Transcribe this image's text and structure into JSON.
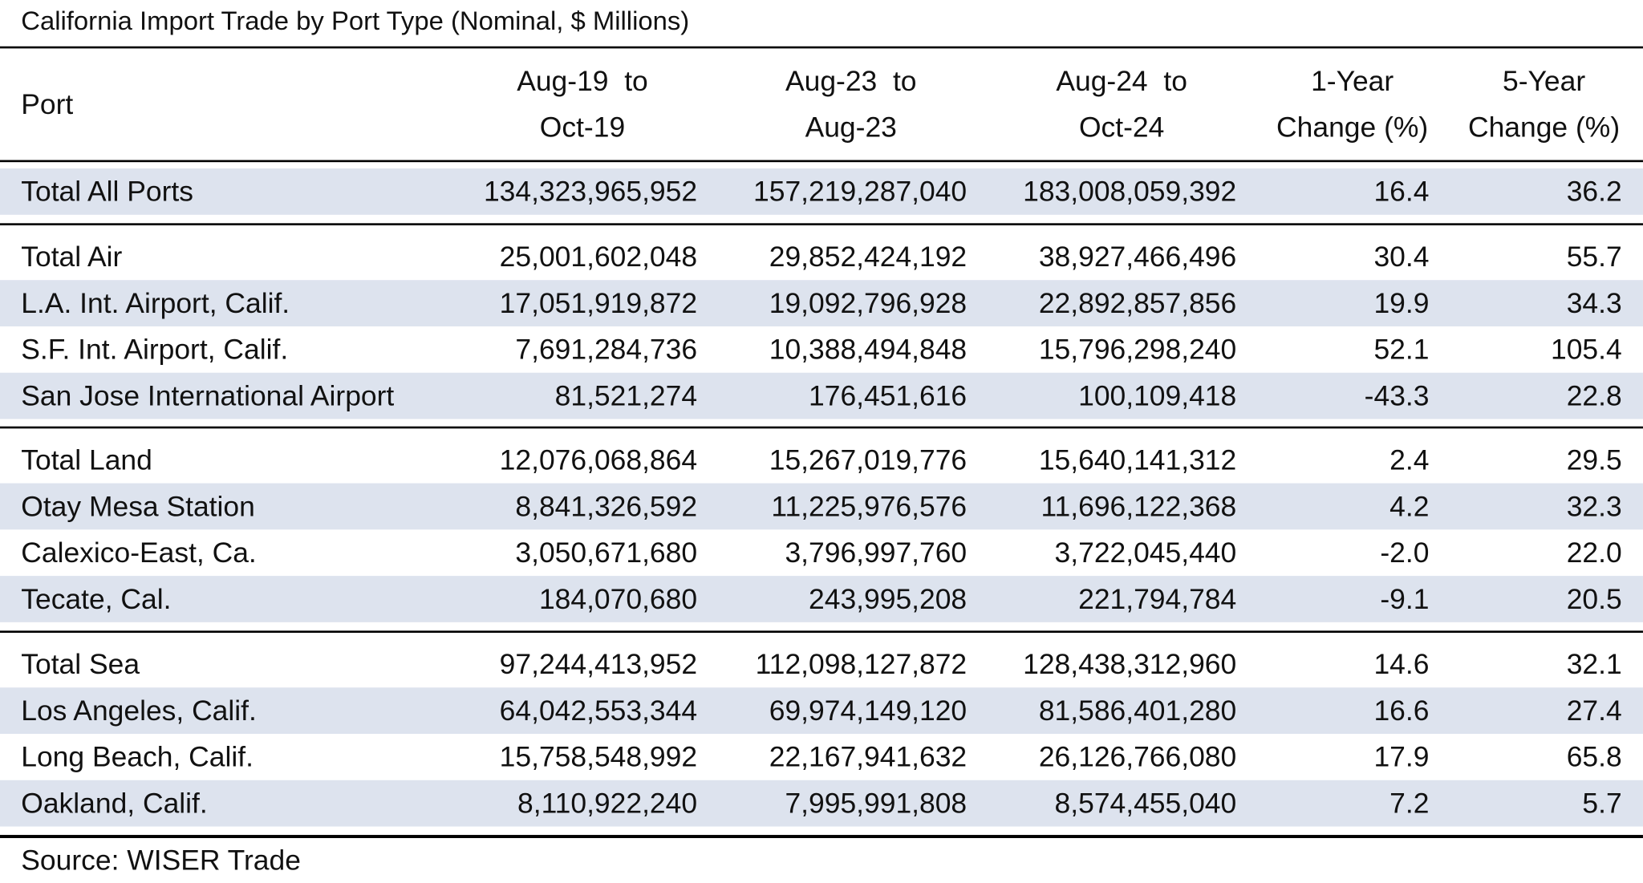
{
  "title": "California Import Trade by Port Type (Nominal, $ Millions)",
  "header": [
    "Port",
    [
      "Aug-19  to",
      "Oct-19"
    ],
    [
      "Aug-23  to",
      "Aug-23"
    ],
    [
      "Aug-24  to",
      "Oct-24"
    ],
    [
      "1-Year",
      "Change (%)"
    ],
    [
      "5-Year",
      "Change (%)"
    ]
  ],
  "rows": [
    [
      "Total All Ports",
      "134,323,965,952",
      "157,219,287,040",
      "183,008,059,392",
      "16.4",
      "36.2"
    ],
    [
      "Total Air",
      "25,001,602,048",
      "29,852,424,192",
      "38,927,466,496",
      "30.4",
      "55.7"
    ],
    [
      "L.A. Int. Airport, Calif.",
      "17,051,919,872",
      "19,092,796,928",
      "22,892,857,856",
      "19.9",
      "34.3"
    ],
    [
      "S.F. Int. Airport, Calif.",
      "7,691,284,736",
      "10,388,494,848",
      "15,796,298,240",
      "52.1",
      "105.4"
    ],
    [
      "San Jose International Airport",
      "81,521,274",
      "176,451,616",
      "100,109,418",
      "-43.3",
      "22.8"
    ],
    [
      "Total Land",
      "12,076,068,864",
      "15,267,019,776",
      "15,640,141,312",
      "2.4",
      "29.5"
    ],
    [
      "Otay Mesa Station",
      "8,841,326,592",
      "11,225,976,576",
      "11,696,122,368",
      "4.2",
      "32.3"
    ],
    [
      "Calexico-East, Ca.",
      "3,050,671,680",
      "3,796,997,760",
      "3,722,045,440",
      "-2.0",
      "22.0"
    ],
    [
      "Tecate, Cal.",
      "184,070,680",
      "243,995,208",
      "221,794,784",
      "-9.1",
      "20.5"
    ],
    [
      "Total Sea",
      "97,244,413,952",
      "112,098,127,872",
      "128,438,312,960",
      "14.6",
      "32.1"
    ],
    [
      "Los Angeles, Calif.",
      "64,042,553,344",
      "69,974,149,120",
      "81,586,401,280",
      "16.6",
      "27.4"
    ],
    [
      "Long Beach, Calif.",
      "15,758,548,992",
      "22,167,941,632",
      "26,126,766,080",
      "17.9",
      "65.8"
    ],
    [
      "Oakland, Calif.",
      "8,110,922,240",
      "7,995,991,808",
      "8,574,455,040",
      "7.2",
      "5.7"
    ]
  ],
  "source": "Source: WISER Trade"
}
